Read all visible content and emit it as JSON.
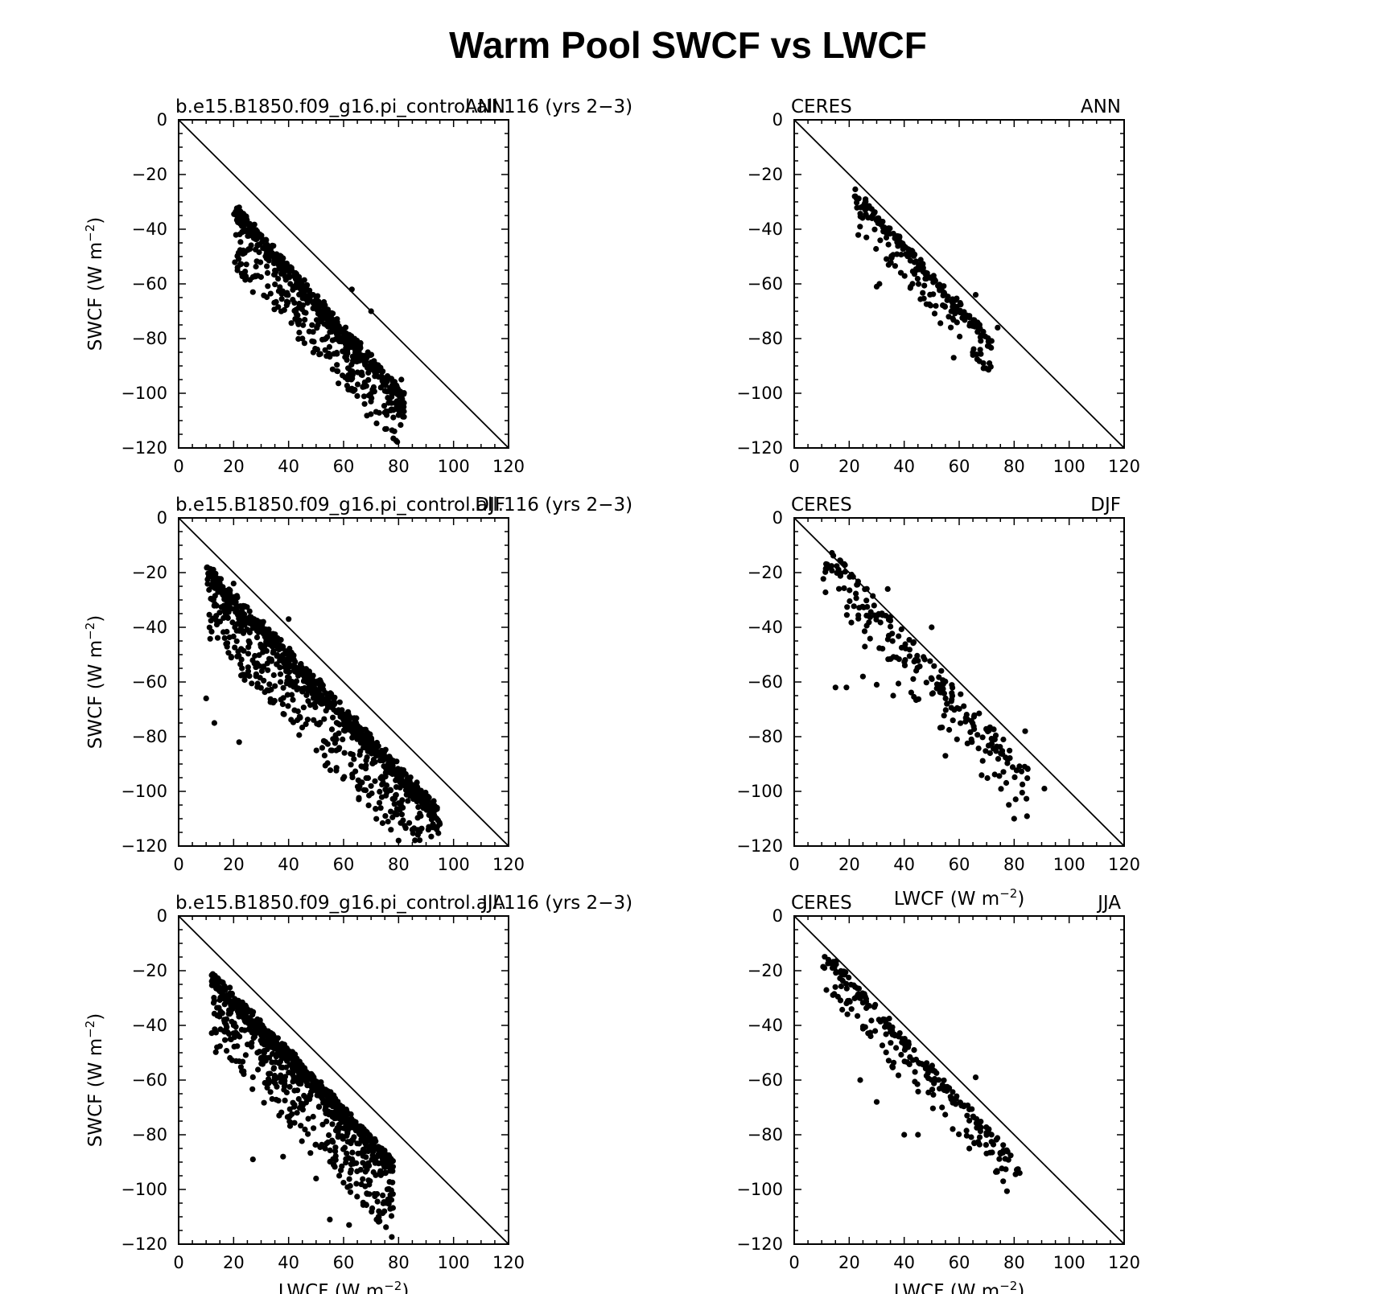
{
  "title": "Warm Pool SWCF vs LWCF",
  "chart_data": [
    {
      "type": "scatter",
      "left_title": "b.e15.B1850.f09_g16.pi_control.all.116 (yrs 2−3)",
      "right_title": "ANN",
      "ylabel": "SWCF (W m",
      "xlabel": "",
      "xlim": [
        0,
        120
      ],
      "ylim": [
        -120,
        0
      ],
      "xticks": [
        "0",
        "20",
        "40",
        "60",
        "80",
        "100",
        "120"
      ],
      "yticks": [
        "0",
        "−20",
        "−40",
        "−60",
        "−80",
        "−100",
        "−120"
      ],
      "reference_line": [
        [
          0,
          0
        ],
        [
          120,
          -120
        ]
      ],
      "cloud": {
        "x_min": 20,
        "x_max": 82,
        "slope": -1.12,
        "intercept": -13,
        "spread_up": 5,
        "spread_down": 18,
        "n": 650,
        "seed": 11
      },
      "points": [
        [
          22,
          -32
        ],
        [
          24,
          -38
        ],
        [
          72,
          -111
        ],
        [
          80,
          -108
        ],
        [
          27,
          -63
        ],
        [
          63,
          -62
        ],
        [
          70,
          -70
        ],
        [
          81,
          -95
        ],
        [
          45,
          -80
        ]
      ]
    },
    {
      "type": "scatter",
      "left_title": "CERES",
      "right_title": "ANN",
      "ylabel": "",
      "xlabel": "",
      "xlim": [
        0,
        120
      ],
      "ylim": [
        -120,
        0
      ],
      "xticks": [
        "0",
        "20",
        "40",
        "60",
        "80",
        "100",
        "120"
      ],
      "yticks": [
        "0",
        "−20",
        "−40",
        "−60",
        "−80",
        "−100",
        "−120"
      ],
      "reference_line": [
        [
          0,
          0
        ],
        [
          120,
          -120
        ]
      ],
      "cloud": {
        "x_min": 22,
        "x_max": 72,
        "slope": -1.1,
        "intercept": -4,
        "spread_up": 3,
        "spread_down": 12,
        "n": 230,
        "seed": 23
      },
      "points": [
        [
          30,
          -61
        ],
        [
          31,
          -60
        ],
        [
          58,
          -87
        ],
        [
          65,
          -86
        ],
        [
          71,
          -89
        ],
        [
          74,
          -76
        ],
        [
          66,
          -64
        ],
        [
          22,
          -28
        ]
      ]
    },
    {
      "type": "scatter",
      "left_title": "b.e15.B1850.f09_g16.pi_control.all.116 (yrs 2−3)",
      "right_title": "DJF",
      "ylabel": "SWCF (W m",
      "xlabel": "",
      "xlim": [
        0,
        120
      ],
      "ylim": [
        -120,
        0
      ],
      "xticks": [
        "0",
        "20",
        "40",
        "60",
        "80",
        "100",
        "120"
      ],
      "yticks": [
        "0",
        "−20",
        "−40",
        "−60",
        "−80",
        "−100",
        "−120"
      ],
      "reference_line": [
        [
          0,
          0
        ],
        [
          120,
          -120
        ]
      ],
      "cloud": {
        "x_min": 10,
        "x_max": 95,
        "slope": -1.05,
        "intercept": -12,
        "spread_up": 6,
        "spread_down": 22,
        "n": 950,
        "seed": 37
      },
      "points": [
        [
          20,
          -24
        ],
        [
          40,
          -37
        ],
        [
          10,
          -66
        ],
        [
          13,
          -75
        ],
        [
          22,
          -82
        ],
        [
          95,
          -112
        ],
        [
          91,
          -113
        ],
        [
          80,
          -118
        ],
        [
          85,
          -114
        ]
      ]
    },
    {
      "type": "scatter",
      "left_title": "CERES",
      "right_title": "DJF",
      "ylabel": "",
      "xlabel": "LWCF (W m",
      "xlim": [
        0,
        120
      ],
      "ylim": [
        -120,
        0
      ],
      "xticks": [
        "0",
        "20",
        "40",
        "60",
        "80",
        "100",
        "120"
      ],
      "yticks": [
        "0",
        "−20",
        "−40",
        "−60",
        "−80",
        "−100",
        "−120"
      ],
      "reference_line": [
        [
          0,
          0
        ],
        [
          120,
          -120
        ]
      ],
      "cloud": {
        "x_min": 10,
        "x_max": 85,
        "slope": -1.12,
        "intercept": -4,
        "spread_up": 8,
        "spread_down": 14,
        "n": 220,
        "seed": 53
      },
      "points": [
        [
          12,
          -17
        ],
        [
          15,
          -62
        ],
        [
          19,
          -62
        ],
        [
          25,
          -58
        ],
        [
          30,
          -61
        ],
        [
          36,
          -65
        ],
        [
          55,
          -87
        ],
        [
          80,
          -110
        ],
        [
          91,
          -99
        ],
        [
          84,
          -78
        ],
        [
          50,
          -40
        ],
        [
          34,
          -26
        ]
      ]
    },
    {
      "type": "scatter",
      "left_title": "b.e15.B1850.f09_g16.pi_control.all.116 (yrs 2−3)",
      "right_title": "JJA",
      "ylabel": "SWCF (W m",
      "xlabel": "LWCF (W m",
      "xlim": [
        0,
        120
      ],
      "ylim": [
        -120,
        0
      ],
      "xticks": [
        "0",
        "20",
        "40",
        "60",
        "80",
        "100",
        "120"
      ],
      "yticks": [
        "0",
        "−20",
        "−40",
        "−60",
        "−80",
        "−100",
        "−120"
      ],
      "reference_line": [
        [
          0,
          0
        ],
        [
          120,
          -120
        ]
      ],
      "cloud": {
        "x_min": 12,
        "x_max": 78,
        "slope": -1.05,
        "intercept": -12,
        "spread_up": 5,
        "spread_down": 24,
        "n": 900,
        "seed": 71
      },
      "points": [
        [
          17,
          -27
        ],
        [
          27,
          -89
        ],
        [
          50,
          -96
        ],
        [
          55,
          -111
        ],
        [
          62,
          -113
        ],
        [
          72,
          -111
        ],
        [
          77,
          -102
        ],
        [
          13,
          -31
        ],
        [
          38,
          -88
        ]
      ]
    },
    {
      "type": "scatter",
      "left_title": "CERES",
      "right_title": "JJA",
      "ylabel": "",
      "xlabel": "LWCF (W m",
      "xlim": [
        0,
        120
      ],
      "ylim": [
        -120,
        0
      ],
      "xticks": [
        "0",
        "20",
        "40",
        "60",
        "80",
        "100",
        "120"
      ],
      "yticks": [
        "0",
        "−20",
        "−40",
        "−60",
        "−80",
        "−100",
        "−120"
      ],
      "reference_line": [
        [
          0,
          0
        ],
        [
          120,
          -120
        ]
      ],
      "cloud": {
        "x_min": 10,
        "x_max": 82,
        "slope": -1.1,
        "intercept": -4,
        "spread_up": 4,
        "spread_down": 12,
        "n": 240,
        "seed": 89
      },
      "points": [
        [
          11,
          -19
        ],
        [
          24,
          -60
        ],
        [
          30,
          -68
        ],
        [
          40,
          -80
        ],
        [
          45,
          -80
        ],
        [
          76,
          -97
        ],
        [
          82,
          -94
        ],
        [
          66,
          -59
        ],
        [
          20,
          -31
        ]
      ]
    }
  ]
}
